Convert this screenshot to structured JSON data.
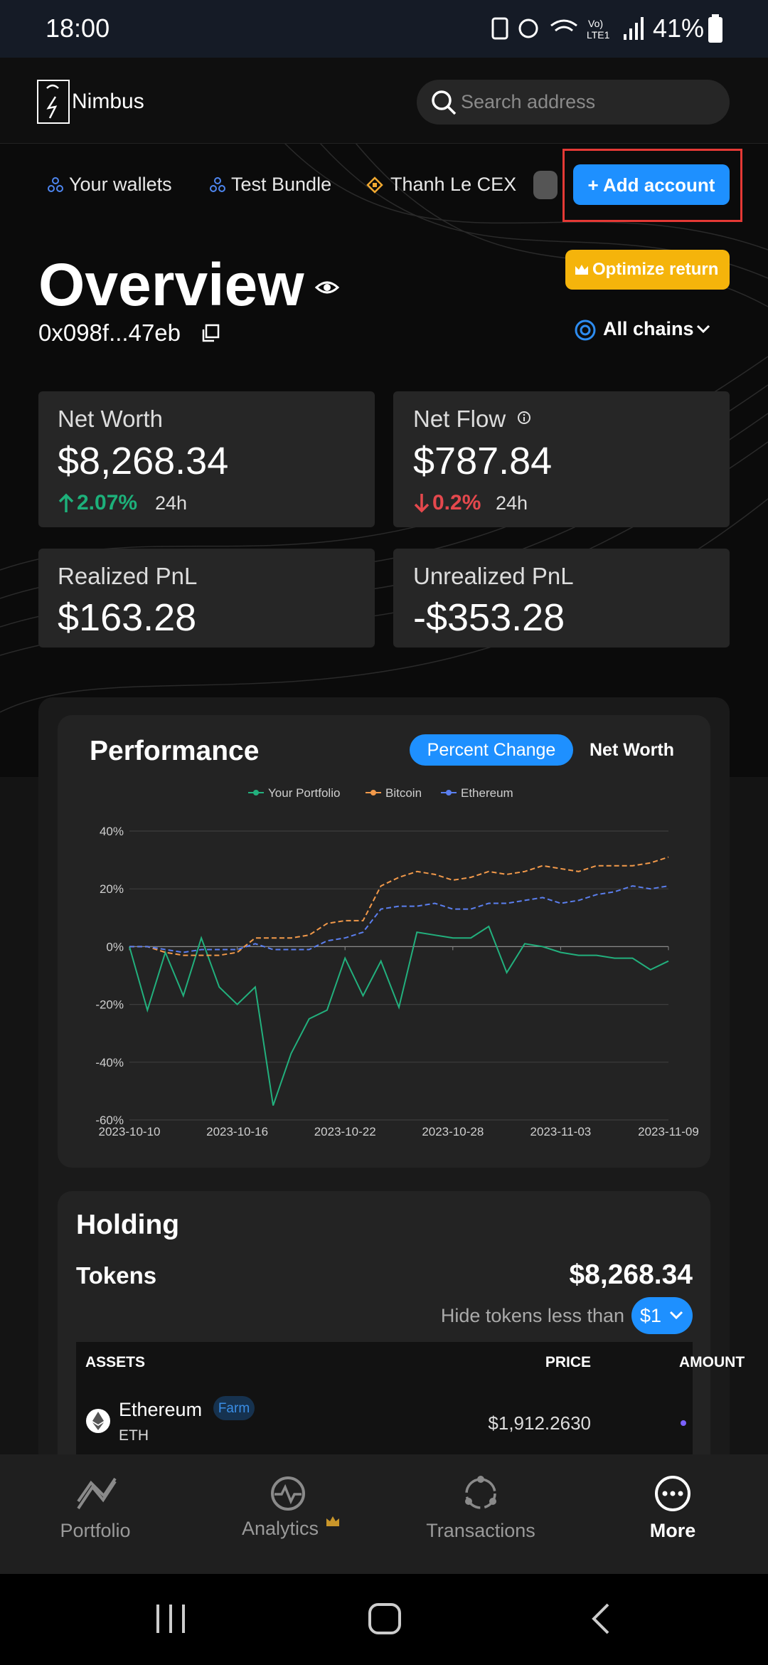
{
  "status_bar": {
    "time": "18:00",
    "battery": "41%"
  },
  "header": {
    "brand": "Nimbus",
    "search_placeholder": "Search address"
  },
  "tabs": [
    "Your wallets",
    "Test Bundle",
    "Thanh Le CEX"
  ],
  "add_account": "+ Add account",
  "overview": {
    "title": "Overview",
    "address": "0x098f...47eb",
    "optimize": "Optimize return",
    "chains": "All chains"
  },
  "cards": [
    {
      "label": "Net Worth",
      "value": "$8,268.34",
      "change": "2.07%",
      "period": "24h"
    },
    {
      "label": "Net Flow",
      "value": "$787.84",
      "change": "0.2%",
      "period": "24h"
    },
    {
      "label": "Realized PnL",
      "value": "$163.28"
    },
    {
      "label": "Unrealized PnL",
      "value": "-$353.28"
    }
  ],
  "performance": {
    "title": "Performance",
    "toggles": [
      "Percent Change",
      "Net Worth"
    ]
  },
  "chart_data": {
    "type": "line",
    "x": [
      "2023-10-10",
      "2023-10-11",
      "2023-10-12",
      "2023-10-13",
      "2023-10-14",
      "2023-10-15",
      "2023-10-16",
      "2023-10-17",
      "2023-10-18",
      "2023-10-19",
      "2023-10-20",
      "2023-10-21",
      "2023-10-22",
      "2023-10-23",
      "2023-10-24",
      "2023-10-25",
      "2023-10-26",
      "2023-10-27",
      "2023-10-28",
      "2023-10-29",
      "2023-10-30",
      "2023-10-31",
      "2023-11-01",
      "2023-11-02",
      "2023-11-03",
      "2023-11-04",
      "2023-11-05",
      "2023-11-06",
      "2023-11-07",
      "2023-11-08",
      "2023-11-09"
    ],
    "xticks": [
      "2023-10-10",
      "2023-10-16",
      "2023-10-22",
      "2023-10-28",
      "2023-11-03",
      "2023-11-09"
    ],
    "ylim": [
      -60,
      40
    ],
    "yticks": [
      {
        "value": -60,
        "label": "-60%"
      },
      {
        "value": -40,
        "label": "-40%"
      },
      {
        "value": -20,
        "label": "-20%"
      },
      {
        "value": 0,
        "label": "0%"
      },
      {
        "value": 20,
        "label": "20%"
      },
      {
        "value": 40,
        "label": "40%"
      }
    ],
    "grid": true,
    "series": [
      {
        "name": "Your Portfolio",
        "color": "#22b07d",
        "dashed": false,
        "values": [
          0,
          -22,
          -2,
          -17,
          3,
          -14,
          -20,
          -14,
          -55,
          -37,
          -25,
          -22,
          -4,
          -17,
          -5,
          -21,
          5,
          4,
          3,
          3,
          7,
          -9,
          1,
          0,
          -2,
          -3,
          -3,
          -4,
          -4,
          -8,
          -5
        ]
      },
      {
        "name": "Bitcoin",
        "color": "#f2994a",
        "dashed": true,
        "values": [
          0,
          0,
          -2,
          -3,
          -3,
          -3,
          -2,
          3,
          3,
          3,
          4,
          8,
          9,
          9,
          21,
          24,
          26,
          25,
          23,
          24,
          26,
          25,
          26,
          28,
          27,
          26,
          28,
          28,
          28,
          29,
          31
        ]
      },
      {
        "name": "Ethereum",
        "color": "#5b7ff0",
        "dashed": true,
        "values": [
          0,
          0,
          -1,
          -2,
          -1,
          -1,
          -1,
          1,
          -1,
          -1,
          -1,
          2,
          3,
          5,
          13,
          14,
          14,
          15,
          13,
          13,
          15,
          15,
          16,
          17,
          15,
          16,
          18,
          19,
          21,
          20,
          21
        ]
      }
    ]
  },
  "holding": {
    "title": "Holding",
    "tokens_label": "Tokens",
    "tokens_total": "$8,268.34",
    "filter_label": "Hide tokens less than",
    "filter_value": "$1",
    "columns": [
      "ASSETS",
      "PRICE",
      "AMOUNT"
    ],
    "rows": [
      {
        "name": "Ethereum",
        "badge": "Farm",
        "symbol": "ETH",
        "price": "$1,912.2630"
      }
    ]
  },
  "nav": [
    "Portfolio",
    "Analytics",
    "Transactions",
    "More"
  ]
}
